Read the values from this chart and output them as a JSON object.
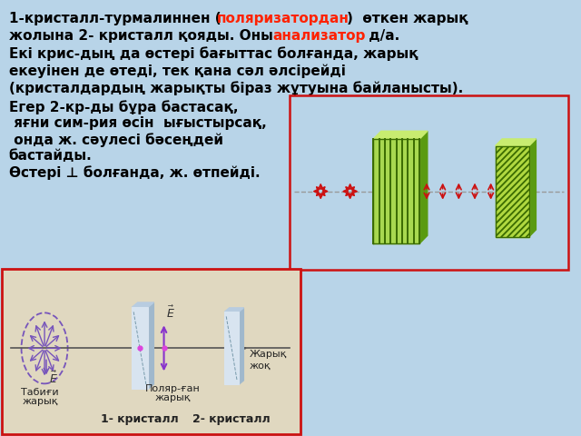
{
  "bg_color": "#b8d4e8",
  "top_text": [
    {
      "parts": [
        {
          "t": "1-кристалл-турмалиннен (",
          "c": "#000000"
        },
        {
          "t": "поляризатордан",
          "c": "#ff2200"
        },
        {
          "t": ")  өткен жарық",
          "c": "#000000"
        }
      ]
    },
    {
      "parts": [
        {
          "t": "жолына 2- кристалл қояды. Оны ",
          "c": "#000000"
        },
        {
          "t": "анализатор",
          "c": "#ff2200"
        },
        {
          "t": " д/а.",
          "c": "#000000"
        }
      ]
    },
    {
      "parts": [
        {
          "t": "Екі крис-дың да өстері бағыттас болғанда, жарық",
          "c": "#000000"
        }
      ]
    },
    {
      "parts": [
        {
          "t": "екеуінен де өтеді, тек қана сәл әлсірейді",
          "c": "#000000"
        }
      ]
    },
    {
      "parts": [
        {
          "t": "(кристалдардың жарықты біраз жұтуына байланысты).",
          "c": "#000000"
        }
      ]
    }
  ],
  "mid_text": [
    "Егер 2-кр-ды бұра бастасақ,",
    " яғни сим-рия өсін  ығыстырсақ,",
    " онда ж. сәулесі бәсеңдей",
    "бастайды.",
    "Өстері ⊥ болғанда, ж. өтпейді."
  ],
  "green_dark": "#3a6b00",
  "green_mid": "#5a9a10",
  "green_light": "#8dc830",
  "green_bg": "#a8d850",
  "green_pale": "#c8ec70",
  "diag_green": "#b0d840",
  "diag_stripe": "#3a6b00",
  "arrow_red": "#cc1111",
  "beam_gray": "#888888",
  "bottom_bg": "#e0d8c0",
  "bottom_border": "#cc1111",
  "slab_face": "#d8e4f0",
  "slab_side": "#a0b8cc",
  "slab_top": "#b8cce0",
  "ellipse_color": "#7755bb",
  "spoke_color": "#7755bb",
  "beam_color": "#555555"
}
